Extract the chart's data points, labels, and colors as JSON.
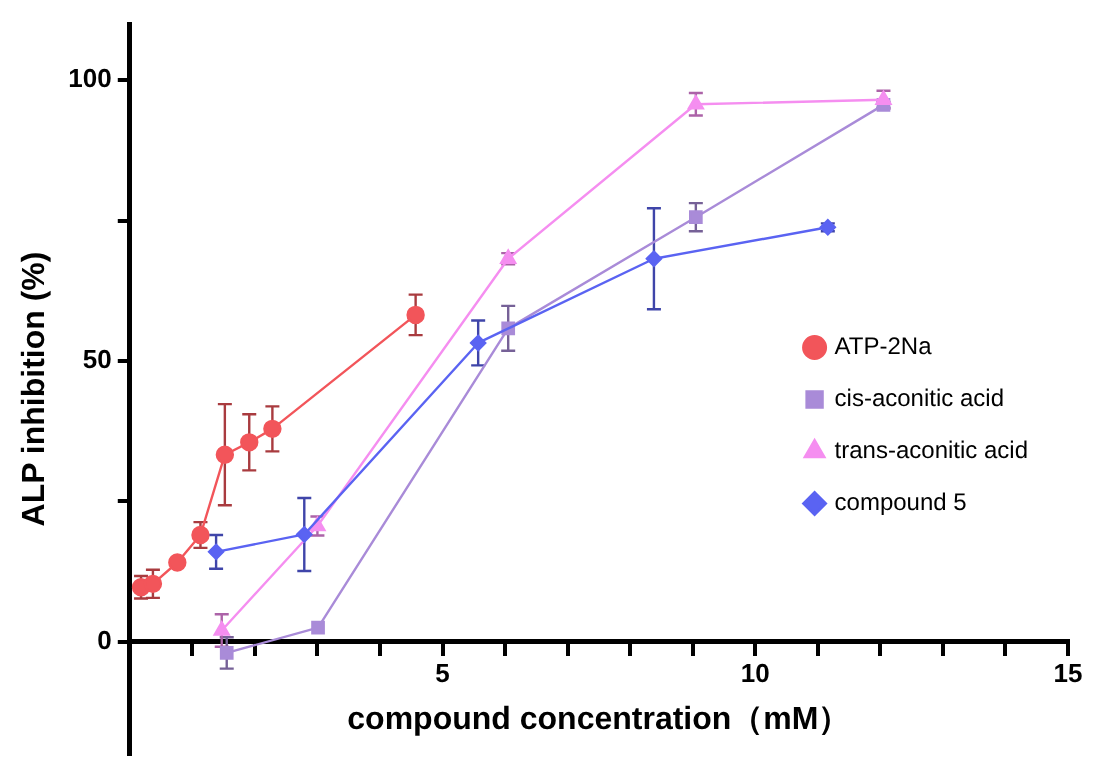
{
  "chart_data": {
    "type": "line",
    "xlabel": "compound concentration（mM）",
    "ylabel": "ALP inhibition (%)",
    "xlim": [
      0,
      15
    ],
    "ylim": [
      -20,
      110
    ],
    "xticks": [
      {
        "value": 1,
        "label": null
      },
      {
        "value": 2,
        "label": null
      },
      {
        "value": 3,
        "label": null
      },
      {
        "value": 4,
        "label": null
      },
      5,
      {
        "value": 6,
        "label": null
      },
      {
        "value": 7,
        "label": null
      },
      {
        "value": 8,
        "label": null
      },
      {
        "value": 9,
        "label": null
      },
      10,
      {
        "value": 11,
        "label": null
      },
      {
        "value": 12,
        "label": null
      },
      {
        "value": 13,
        "label": null
      },
      {
        "value": 14,
        "label": null
      },
      15
    ],
    "yticks": [
      0,
      {
        "value": 25,
        "label": null
      },
      50,
      {
        "value": 75,
        "label": null
      },
      100
    ],
    "grid": false,
    "legend": "right",
    "line_style": "solid",
    "series": [
      {
        "name": "ATP-2Na",
        "color": "#f2555a",
        "marker": "circle",
        "x": [
          0.18,
          0.37,
          0.76,
          1.13,
          1.52,
          1.91,
          2.28,
          4.57
        ],
        "values": [
          9.7,
          10.3,
          14.1,
          19.0,
          33.3,
          35.5,
          37.9,
          58.2
        ],
        "errors": [
          2,
          2.5,
          0.5,
          2.3,
          9,
          5,
          4,
          3.6
        ]
      },
      {
        "name": "cis-aconitic acid",
        "color": "#a98bd8",
        "marker": "square",
        "x": [
          1.55,
          3.01,
          6.05,
          9.05,
          12.05
        ],
        "values": [
          -2.0,
          2.5,
          55.8,
          75.6,
          95.6
        ],
        "errors": [
          2.8,
          null,
          4,
          2.5,
          0.5
        ]
      },
      {
        "name": "trans-aconitic acid",
        "color": "#f58ef0",
        "marker": "triangle",
        "x": [
          1.47,
          3.0,
          6.05,
          9.05,
          12.05
        ],
        "values": [
          2.0,
          20.6,
          68.2,
          95.7,
          96.5
        ],
        "errors": [
          2.9,
          1.7,
          1,
          2,
          1.6
        ]
      },
      {
        "name": "compound 5",
        "color": "#5a63f2",
        "marker": "diamond",
        "x": [
          1.38,
          2.79,
          5.57,
          8.38,
          11.16
        ],
        "values": [
          16.0,
          19.1,
          53.2,
          68.2,
          73.8
        ],
        "errors": [
          3,
          6.5,
          4,
          9,
          0.7
        ]
      }
    ]
  }
}
